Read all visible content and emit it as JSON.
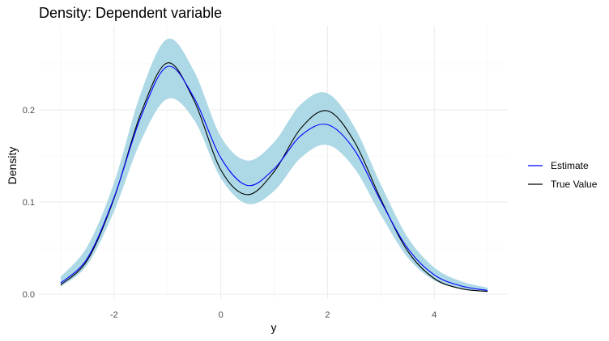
{
  "chart_data": {
    "type": "line",
    "title": "Density: Dependent variable",
    "xlabel": "y",
    "ylabel": "Density",
    "xlim": [
      -3.0,
      5.0
    ],
    "ylim": [
      0.0,
      0.26
    ],
    "x_ticks": [
      -2,
      0,
      2,
      4
    ],
    "x_tick_labels": [
      "-2",
      "0",
      "2",
      "4"
    ],
    "y_ticks": [
      0.0,
      0.1,
      0.2
    ],
    "y_tick_labels": [
      "0.0",
      "0.1",
      "0.2"
    ],
    "grid": true,
    "legend_position": "right",
    "x": [
      -3.0,
      -2.5,
      -2.0,
      -1.5,
      -1.0,
      -0.5,
      0.0,
      0.5,
      1.0,
      1.5,
      2.0,
      2.5,
      3.0,
      3.5,
      4.0,
      4.5,
      5.0
    ],
    "series": [
      {
        "name": "Estimate",
        "color": "#0000ff",
        "values": [
          0.012,
          0.039,
          0.105,
          0.192,
          0.247,
          0.213,
          0.148,
          0.118,
          0.136,
          0.172,
          0.184,
          0.157,
          0.101,
          0.05,
          0.021,
          0.009,
          0.004
        ]
      },
      {
        "name": "True Value",
        "color": "#000000",
        "values": [
          0.01,
          0.037,
          0.104,
          0.196,
          0.251,
          0.21,
          0.135,
          0.108,
          0.133,
          0.18,
          0.199,
          0.166,
          0.103,
          0.047,
          0.017,
          0.006,
          0.003
        ]
      }
    ],
    "band": {
      "color": "#add8e6",
      "lower": [
        0.008,
        0.032,
        0.09,
        0.166,
        0.212,
        0.189,
        0.126,
        0.098,
        0.112,
        0.148,
        0.162,
        0.137,
        0.086,
        0.04,
        0.015,
        0.006,
        0.002
      ],
      "upper": [
        0.019,
        0.052,
        0.121,
        0.218,
        0.277,
        0.242,
        0.171,
        0.145,
        0.165,
        0.206,
        0.218,
        0.182,
        0.119,
        0.062,
        0.029,
        0.014,
        0.007
      ]
    }
  }
}
